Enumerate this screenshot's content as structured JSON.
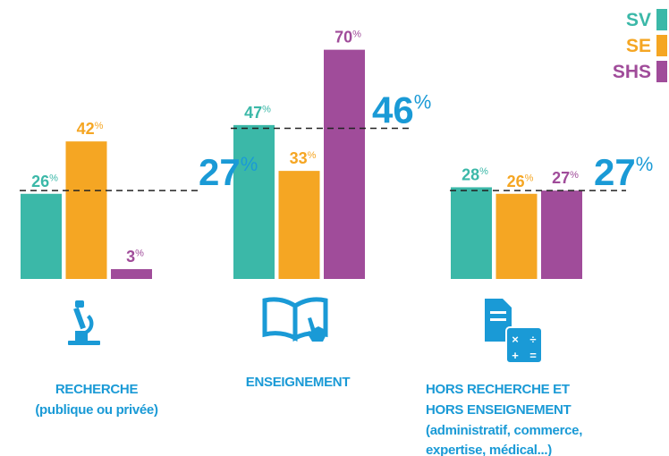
{
  "chart_data": {
    "type": "bar",
    "categories": [
      [
        "RECHERCHE",
        "(publique ou privée)"
      ],
      [
        "ENSEIGNEMENT"
      ],
      [
        "HORS RECHERCHE ET",
        "HORS ENSEIGNEMENT",
        "(administratif, commerce,",
        "expertise, médical...)"
      ]
    ],
    "series": [
      {
        "name": "SV",
        "color": "#3bb8a8",
        "values": [
          26,
          47,
          28
        ]
      },
      {
        "name": "SE",
        "color": "#f5a623",
        "values": [
          42,
          33,
          26
        ]
      },
      {
        "name": "SHS",
        "color": "#a04c9a",
        "values": [
          3,
          70,
          27
        ]
      }
    ],
    "averages": [
      27,
      46,
      27
    ],
    "average_color": "#1a9ad6",
    "unit": "%",
    "ylim": [
      0,
      80
    ]
  }
}
